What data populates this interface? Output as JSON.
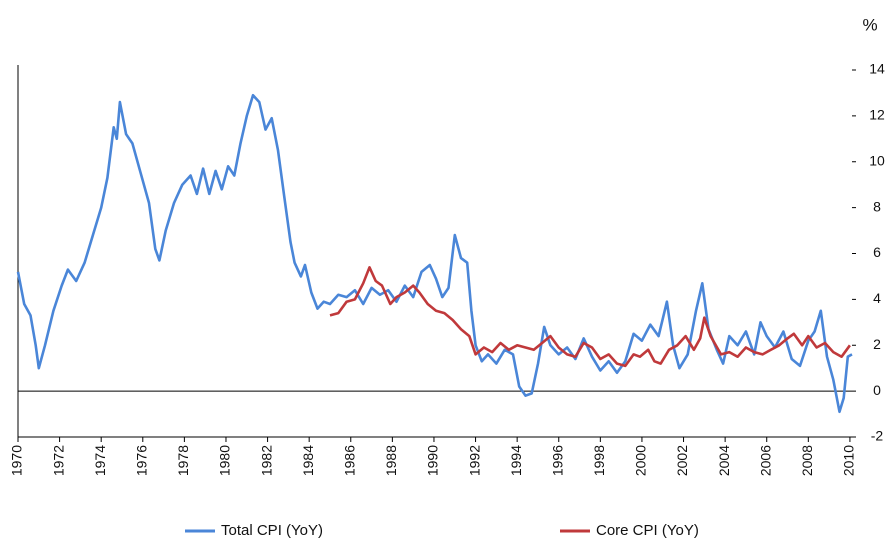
{
  "chart_data": {
    "type": "line",
    "y_label": "%",
    "xlim": [
      1970,
      2010.1
    ],
    "ylim": [
      -2,
      14
    ],
    "xticks": [
      1970,
      1972,
      1974,
      1976,
      1978,
      1980,
      1982,
      1984,
      1986,
      1988,
      1990,
      1992,
      1994,
      1996,
      1998,
      2000,
      2002,
      2004,
      2006,
      2008,
      2010
    ],
    "yticks": [
      -2,
      0,
      2,
      4,
      6,
      8,
      10,
      12,
      14
    ],
    "legend": "bottom",
    "series": [
      {
        "name": "Total CPI (YoY)",
        "color": "#4a86d8",
        "x": [
          1970.0,
          1970.3,
          1970.6,
          1970.85,
          1971.0,
          1971.3,
          1971.7,
          1972.1,
          1972.4,
          1972.8,
          1973.2,
          1973.6,
          1974.0,
          1974.3,
          1974.6,
          1974.75,
          1974.9,
          1975.2,
          1975.5,
          1975.9,
          1976.3,
          1976.6,
          1976.8,
          1977.1,
          1977.5,
          1977.9,
          1978.3,
          1978.6,
          1978.9,
          1979.2,
          1979.5,
          1979.8,
          1980.1,
          1980.4,
          1980.7,
          1981.0,
          1981.3,
          1981.6,
          1981.9,
          1982.2,
          1982.5,
          1982.8,
          1983.1,
          1983.3,
          1983.6,
          1983.8,
          1984.1,
          1984.4,
          1984.7,
          1985.0,
          1985.4,
          1985.8,
          1986.2,
          1986.6,
          1987.0,
          1987.4,
          1987.8,
          1988.2,
          1988.6,
          1989.0,
          1989.4,
          1989.8,
          1990.1,
          1990.4,
          1990.7,
          1991.0,
          1991.3,
          1991.6,
          1991.8,
          1992.0,
          1992.3,
          1992.6,
          1993.0,
          1993.4,
          1993.8,
          1994.1,
          1994.4,
          1994.7,
          1995.0,
          1995.3,
          1995.6,
          1996.0,
          1996.4,
          1996.8,
          1997.2,
          1997.6,
          1998.0,
          1998.4,
          1998.8,
          1999.2,
          1999.6,
          2000.0,
          2000.4,
          2000.8,
          2001.2,
          2001.5,
          2001.8,
          2002.2,
          2002.6,
          2002.9,
          2003.2,
          2003.6,
          2003.9,
          2004.2,
          2004.6,
          2005.0,
          2005.4,
          2005.7,
          2006.0,
          2006.4,
          2006.8,
          2007.2,
          2007.6,
          2008.0,
          2008.3,
          2008.6,
          2008.9,
          2009.2,
          2009.5,
          2009.7,
          2009.9,
          2010.1
        ],
        "values": [
          5.2,
          3.8,
          3.3,
          2.0,
          1.0,
          2.0,
          3.5,
          4.6,
          5.3,
          4.8,
          5.6,
          6.8,
          8.0,
          9.3,
          11.5,
          11.0,
          12.6,
          11.2,
          10.8,
          9.5,
          8.2,
          6.2,
          5.7,
          7.0,
          8.2,
          9.0,
          9.4,
          8.6,
          9.7,
          8.6,
          9.6,
          8.8,
          9.8,
          9.4,
          10.8,
          12.0,
          12.9,
          12.6,
          11.4,
          11.9,
          10.5,
          8.5,
          6.5,
          5.6,
          5.0,
          5.5,
          4.3,
          3.6,
          3.9,
          3.8,
          4.2,
          4.1,
          4.4,
          3.8,
          4.5,
          4.2,
          4.4,
          3.9,
          4.6,
          4.1,
          5.2,
          5.5,
          4.9,
          4.1,
          4.5,
          6.8,
          5.8,
          5.6,
          3.5,
          2.0,
          1.3,
          1.6,
          1.2,
          1.8,
          1.6,
          0.2,
          -0.2,
          -0.1,
          1.2,
          2.8,
          2.0,
          1.6,
          1.9,
          1.4,
          2.3,
          1.5,
          0.9,
          1.3,
          0.8,
          1.3,
          2.5,
          2.2,
          2.9,
          2.4,
          3.9,
          2.0,
          1.0,
          1.6,
          3.5,
          4.7,
          2.7,
          1.8,
          1.2,
          2.4,
          2.0,
          2.6,
          1.6,
          3.0,
          2.4,
          1.9,
          2.6,
          1.4,
          1.1,
          2.2,
          2.6,
          3.5,
          1.5,
          0.5,
          -0.9,
          -0.3,
          1.5,
          1.6
        ]
      },
      {
        "name": "Core CPI (YoY)",
        "color": "#c0393b",
        "x": [
          1985.0,
          1985.4,
          1985.8,
          1986.2,
          1986.6,
          1986.9,
          1987.2,
          1987.5,
          1987.9,
          1988.2,
          1988.6,
          1989.0,
          1989.3,
          1989.7,
          1990.1,
          1990.5,
          1990.9,
          1991.3,
          1991.7,
          1992.0,
          1992.4,
          1992.8,
          1993.2,
          1993.6,
          1994.0,
          1994.4,
          1994.8,
          1995.2,
          1995.6,
          1996.0,
          1996.4,
          1996.8,
          1997.2,
          1997.6,
          1998.0,
          1998.4,
          1998.8,
          1999.2,
          1999.6,
          1999.9,
          2000.3,
          2000.6,
          2000.9,
          2001.3,
          2001.7,
          2002.1,
          2002.5,
          2002.8,
          2003.0,
          2003.3,
          2003.8,
          2004.2,
          2004.6,
          2005.0,
          2005.4,
          2005.8,
          2006.2,
          2006.6,
          2007.0,
          2007.3,
          2007.7,
          2008.0,
          2008.4,
          2008.8,
          2009.2,
          2009.6,
          2010.0
        ],
        "values": [
          3.3,
          3.4,
          3.9,
          4.0,
          4.7,
          5.4,
          4.8,
          4.6,
          3.8,
          4.1,
          4.3,
          4.6,
          4.3,
          3.8,
          3.5,
          3.4,
          3.1,
          2.7,
          2.4,
          1.6,
          1.9,
          1.7,
          2.1,
          1.8,
          2.0,
          1.9,
          1.8,
          2.1,
          2.4,
          1.9,
          1.6,
          1.5,
          2.1,
          1.9,
          1.4,
          1.6,
          1.2,
          1.1,
          1.6,
          1.5,
          1.8,
          1.3,
          1.2,
          1.8,
          2.0,
          2.4,
          1.8,
          2.3,
          3.2,
          2.4,
          1.6,
          1.7,
          1.5,
          1.9,
          1.7,
          1.6,
          1.8,
          2.0,
          2.3,
          2.5,
          2.0,
          2.4,
          1.9,
          2.1,
          1.7,
          1.5,
          2.0
        ]
      }
    ]
  }
}
